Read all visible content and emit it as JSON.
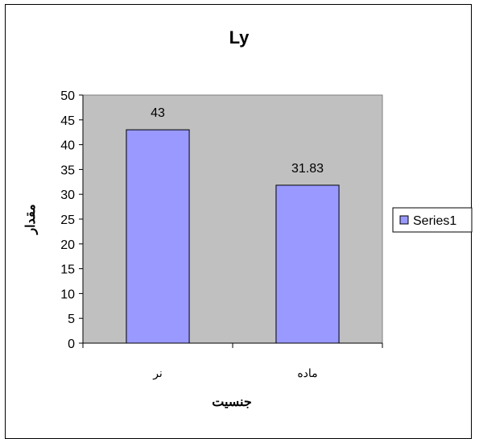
{
  "chart_data": {
    "type": "bar",
    "title": "Ly",
    "xlabel": "جنسیت",
    "ylabel": "مقدار",
    "categories": [
      "نر",
      "ماده"
    ],
    "series": [
      {
        "name": "Series1",
        "values": [
          43,
          31.83
        ],
        "data_labels": [
          "43",
          "31.83"
        ]
      }
    ],
    "ylim": [
      0,
      50
    ],
    "yticks": [
      "0",
      "5",
      "10",
      "15",
      "20",
      "25",
      "30",
      "35",
      "40",
      "45",
      "50"
    ],
    "grid": false,
    "legend": "right",
    "colors": {
      "bar_fill": "#9999ff",
      "bar_stroke": "#000000",
      "plot_background": "#c0c0c0",
      "page_background": "#ffffff"
    }
  }
}
